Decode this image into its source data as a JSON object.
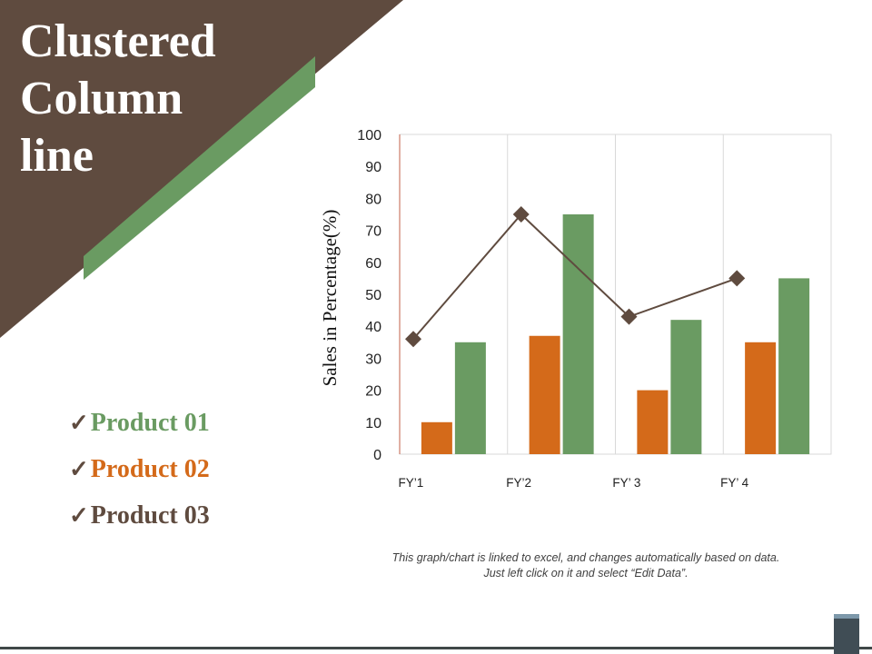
{
  "slide": {
    "title_lines": [
      "Clustered",
      "Column",
      "line"
    ],
    "note_lines": [
      "This graph/chart is linked to excel, and changes automatically based on data.",
      "Just left click on it and select “Edit Data”."
    ]
  },
  "legend": {
    "check_glyph": "✓",
    "items": [
      {
        "label": "Product 01",
        "color": "#6a9b62"
      },
      {
        "label": "Product 02",
        "color": "#d46a1a"
      },
      {
        "label": "Product 03",
        "color": "#5f4b3f"
      }
    ]
  },
  "colors": {
    "brown": "#5f4b3f",
    "green": "#6a9b62",
    "orange": "#d46a1a"
  },
  "chart_data": {
    "type": "bar",
    "title": "",
    "ylabel": "Sales in Percentage(%)",
    "xlabel": "",
    "categories": [
      "FY’1",
      "FY’2",
      "FY’ 3",
      "FY’ 4"
    ],
    "ylim": [
      0,
      100
    ],
    "yticks": [
      0,
      10,
      20,
      30,
      40,
      50,
      60,
      70,
      80,
      90,
      100
    ],
    "grid": "vertical",
    "series": [
      {
        "kind": "bar",
        "color": "#d46a1a",
        "values": [
          10,
          37,
          20,
          35
        ]
      },
      {
        "kind": "bar",
        "color": "#6a9b62",
        "values": [
          35,
          75,
          42,
          55
        ]
      },
      {
        "kind": "line",
        "marker": "diamond",
        "color": "#5f4b3f",
        "values": [
          36,
          75,
          43,
          55
        ]
      }
    ]
  }
}
